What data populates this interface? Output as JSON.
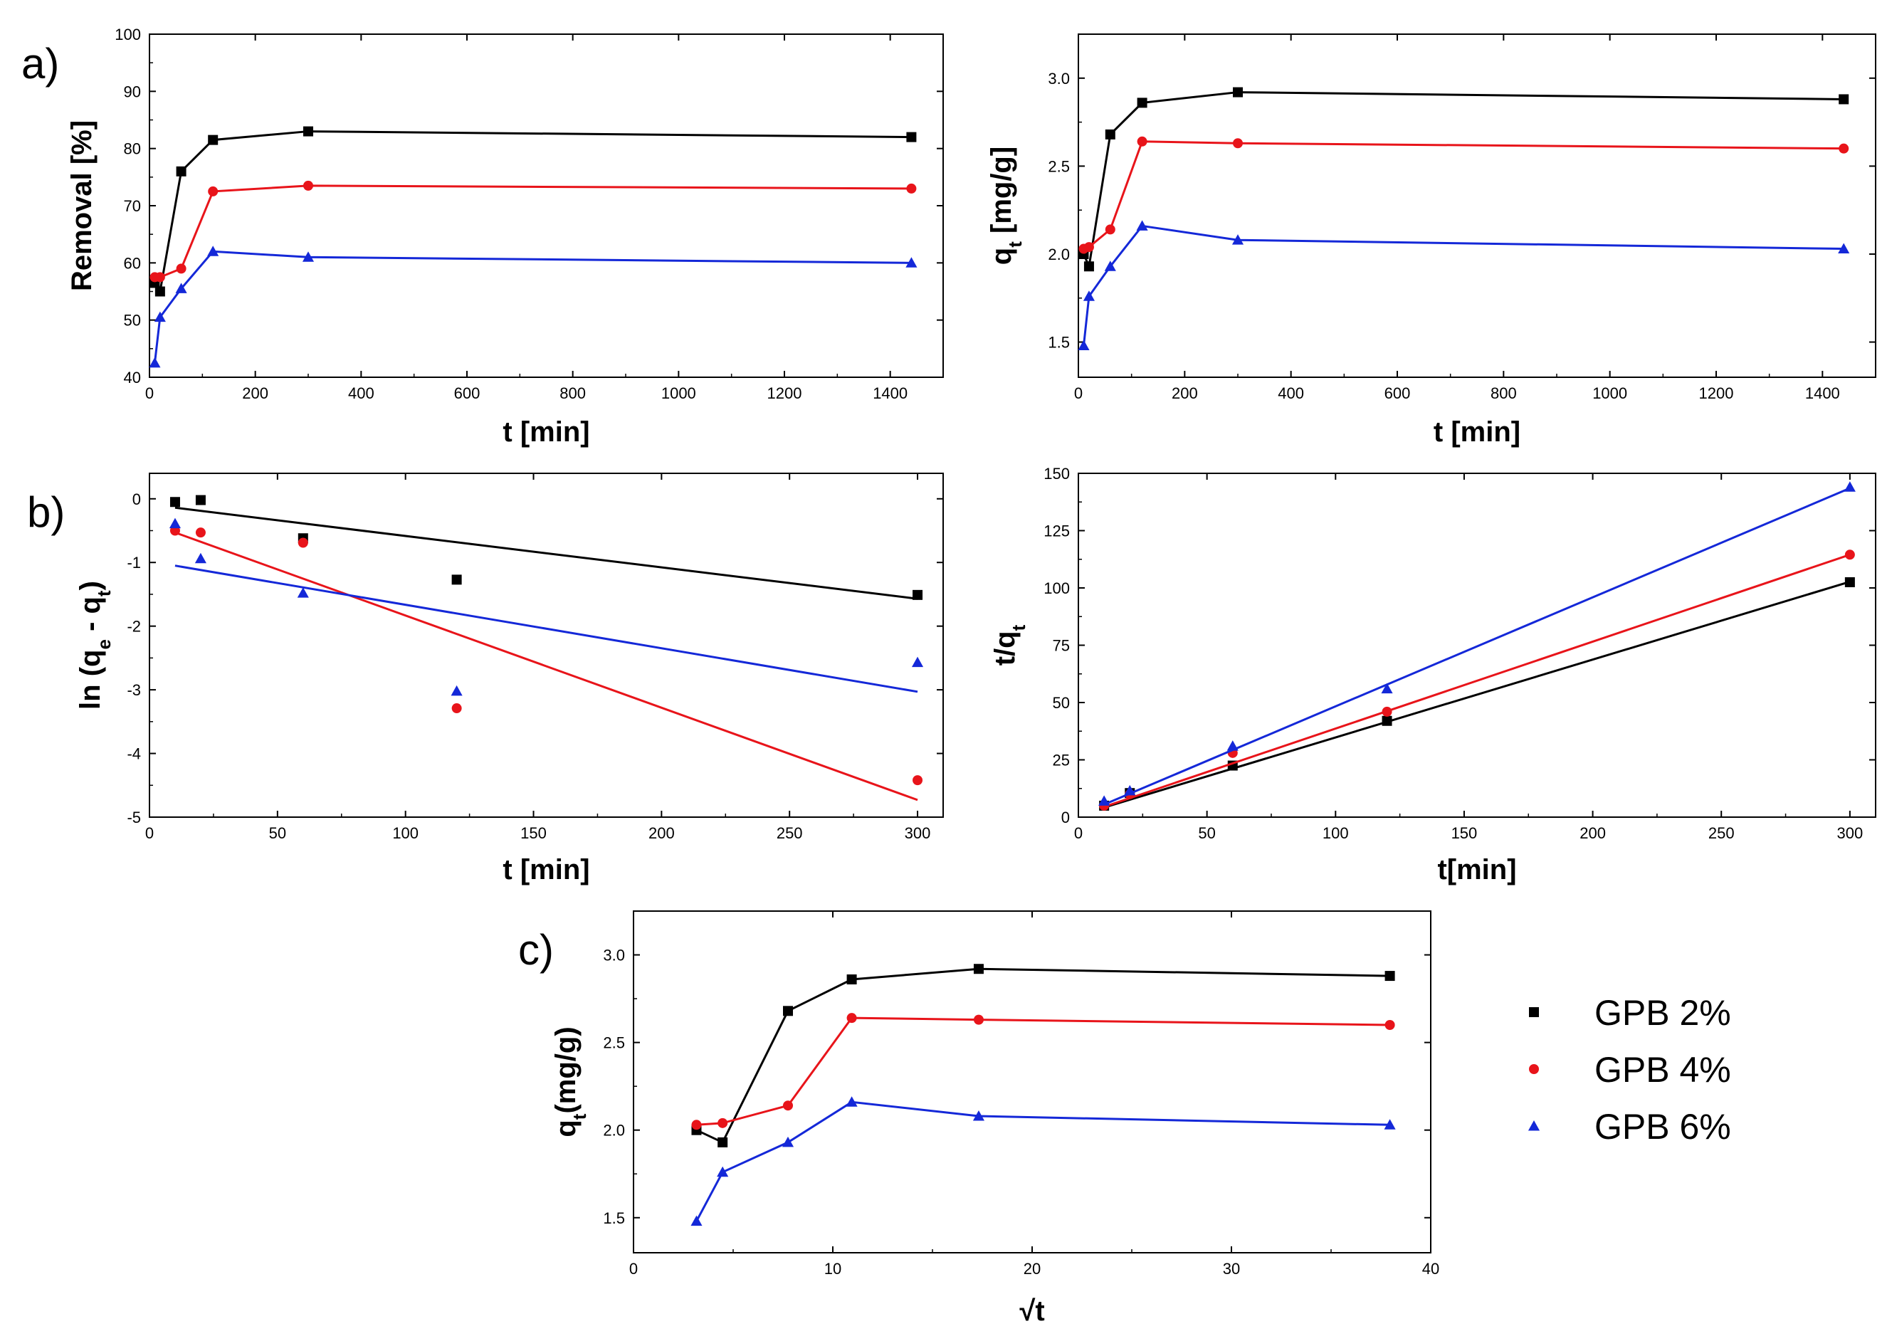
{
  "figure": {
    "legend": [
      {
        "label": "GPB 2%",
        "color": "#000000",
        "marker": "square"
      },
      {
        "label": "GPB 4%",
        "color": "#e8141a",
        "marker": "circle"
      },
      {
        "label": "GPB 6%",
        "color": "#1428d8",
        "marker": "triangle"
      }
    ]
  },
  "chart_data": [
    {
      "id": "a1",
      "panel_label": "a)",
      "type": "line",
      "xlabel": "t [min]",
      "ylabel": "Removal [%]",
      "xlim": [
        0,
        1500
      ],
      "ylim": [
        40,
        100
      ],
      "xticks": [
        "0",
        "200",
        "400",
        "600",
        "800",
        "1000",
        "1200",
        "1400"
      ],
      "yticks": [
        "40",
        "50",
        "60",
        "70",
        "80",
        "90",
        "100"
      ],
      "series": [
        {
          "name": "GPB 2%",
          "x": [
            10,
            20,
            60,
            120,
            300,
            1440
          ],
          "y": [
            56.5,
            55.0,
            76.0,
            81.5,
            83.0,
            82.0
          ]
        },
        {
          "name": "GPB 4%",
          "x": [
            10,
            20,
            60,
            120,
            300,
            1440
          ],
          "y": [
            57.5,
            57.5,
            59.0,
            72.5,
            73.5,
            73.0
          ]
        },
        {
          "name": "GPB 6%",
          "x": [
            10,
            20,
            60,
            120,
            300,
            1440
          ],
          "y": [
            42.5,
            50.5,
            55.5,
            62.0,
            61.0,
            60.0
          ]
        }
      ]
    },
    {
      "id": "a2",
      "panel_label": "",
      "type": "line",
      "xlabel": "t [min]",
      "ylabel": "qt [mg/g]",
      "ylabel_main": "q",
      "ylabel_sub": "t",
      "ylabel_rest": " [mg/g]",
      "xlim": [
        0,
        1500
      ],
      "ylim": [
        1.3,
        3.25
      ],
      "xticks": [
        "0",
        "200",
        "400",
        "600",
        "800",
        "1000",
        "1200",
        "1400"
      ],
      "yticks": [
        "1.5",
        "2.0",
        "2.5",
        "3.0"
      ],
      "series": [
        {
          "name": "GPB 2%",
          "x": [
            10,
            20,
            60,
            120,
            300,
            1440
          ],
          "y": [
            2.0,
            1.93,
            2.68,
            2.86,
            2.92,
            2.88
          ]
        },
        {
          "name": "GPB 4%",
          "x": [
            10,
            20,
            60,
            120,
            300,
            1440
          ],
          "y": [
            2.03,
            2.04,
            2.14,
            2.64,
            2.63,
            2.6
          ]
        },
        {
          "name": "GPB 6%",
          "x": [
            10,
            20,
            60,
            120,
            300,
            1440
          ],
          "y": [
            1.48,
            1.76,
            1.93,
            2.16,
            2.08,
            2.03
          ]
        }
      ]
    },
    {
      "id": "b1",
      "panel_label": "b)",
      "type": "scatter",
      "xlabel": "t [min]",
      "ylabel": "ln (qe - qt)",
      "ylabel_parts": [
        "ln (q",
        "e",
        " - q",
        "t",
        ")"
      ],
      "xlim": [
        0,
        310
      ],
      "ylim": [
        -5,
        0.4
      ],
      "xticks": [
        "0",
        "50",
        "100",
        "150",
        "200",
        "250",
        "300"
      ],
      "yticks": [
        "-5",
        "-4",
        "-3",
        "-2",
        "-1",
        "0"
      ],
      "series": [
        {
          "name": "GPB 2%",
          "x": [
            10,
            20,
            60,
            120,
            300
          ],
          "y": [
            -0.05,
            -0.02,
            -0.62,
            -1.27,
            -1.51
          ],
          "fit": [
            [
              10,
              -0.14
            ],
            [
              300,
              -1.57
            ]
          ]
        },
        {
          "name": "GPB 4%",
          "x": [
            10,
            20,
            60,
            120,
            300
          ],
          "y": [
            -0.5,
            -0.53,
            -0.69,
            -3.29,
            -4.42
          ],
          "fit": [
            [
              10,
              -0.53
            ],
            [
              300,
              -4.73
            ]
          ]
        },
        {
          "name": "GPB 6%",
          "x": [
            10,
            20,
            60,
            120,
            300
          ],
          "y": [
            -0.39,
            -0.94,
            -1.48,
            -3.02,
            -2.57
          ],
          "fit": [
            [
              10,
              -1.05
            ],
            [
              300,
              -3.03
            ]
          ]
        }
      ]
    },
    {
      "id": "b2",
      "panel_label": "",
      "type": "scatter",
      "xlabel": "t[min]",
      "ylabel": "t/qt",
      "ylabel_main": "t/q",
      "ylabel_sub": "t",
      "xlim": [
        0,
        310
      ],
      "ylim": [
        0,
        150
      ],
      "xticks": [
        "0",
        "50",
        "100",
        "150",
        "200",
        "250",
        "300"
      ],
      "yticks": [
        "0",
        "25",
        "50",
        "75",
        "100",
        "125",
        "150"
      ],
      "series": [
        {
          "name": "GPB 2%",
          "x": [
            10,
            20,
            60,
            120,
            300
          ],
          "y": [
            5,
            10.5,
            22.5,
            42,
            102.5
          ],
          "fit": [
            [
              10,
              4.2
            ],
            [
              300,
              102.7
            ]
          ]
        },
        {
          "name": "GPB 4%",
          "x": [
            10,
            20,
            60,
            120,
            300
          ],
          "y": [
            5,
            10,
            28,
            46,
            114.5
          ],
          "fit": [
            [
              10,
              4.5
            ],
            [
              300,
              114.5
            ]
          ]
        },
        {
          "name": "GPB 6%",
          "x": [
            10,
            20,
            60,
            120,
            300
          ],
          "y": [
            7,
            11.5,
            31,
            56,
            144
          ],
          "fit": [
            [
              10,
              5.5
            ],
            [
              300,
              143.5
            ]
          ]
        }
      ]
    },
    {
      "id": "c",
      "panel_label": "c)",
      "type": "line",
      "xlabel": "√t",
      "ylabel": "qt(mg/g)",
      "ylabel_main": "q",
      "ylabel_sub": "t",
      "ylabel_rest": "(mg/g)",
      "xlim": [
        0,
        40
      ],
      "ylim": [
        1.3,
        3.25
      ],
      "xticks": [
        "0",
        "10",
        "20",
        "30",
        "40"
      ],
      "yticks": [
        "1.5",
        "2.0",
        "2.5",
        "3.0"
      ],
      "series": [
        {
          "name": "GPB 2%",
          "x": [
            3.16,
            4.47,
            7.75,
            10.95,
            17.32,
            37.95
          ],
          "y": [
            2.0,
            1.93,
            2.68,
            2.86,
            2.92,
            2.88
          ]
        },
        {
          "name": "GPB 4%",
          "x": [
            3.16,
            4.47,
            7.75,
            10.95,
            17.32,
            37.95
          ],
          "y": [
            2.03,
            2.04,
            2.14,
            2.64,
            2.63,
            2.6
          ]
        },
        {
          "name": "GPB 6%",
          "x": [
            3.16,
            4.47,
            7.75,
            10.95,
            17.32,
            37.95
          ],
          "y": [
            1.48,
            1.76,
            1.93,
            2.16,
            2.08,
            2.03
          ]
        }
      ]
    }
  ]
}
